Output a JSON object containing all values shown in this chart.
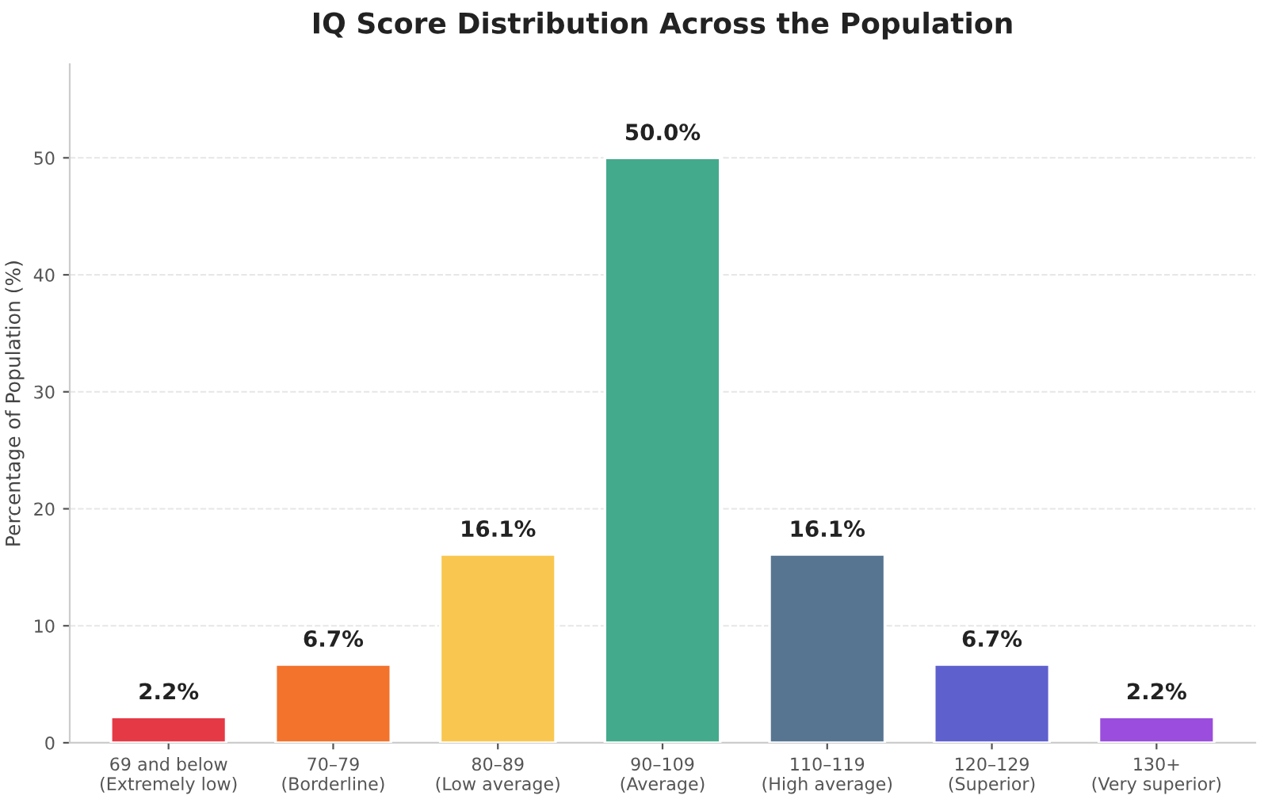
{
  "chart_data": {
    "type": "bar",
    "title": "IQ Score Distribution Across the Population",
    "ylabel": "Percentage of Population (%)",
    "categories": [
      "69 and below\n(Extremely low)",
      "70–79\n(Borderline)",
      "80–89\n(Low average)",
      "90–109\n(Average)",
      "110–119\n(High average)",
      "120–129\n(Superior)",
      "130+\n(Very superior)"
    ],
    "values": [
      2.2,
      6.7,
      16.1,
      50.0,
      16.1,
      6.7,
      2.2
    ],
    "colors": [
      "#e63946",
      "#f3722c",
      "#f9c74f",
      "#43aa8b",
      "#577590",
      "#5e60ce",
      "#9b4dde"
    ],
    "value_labels": [
      "2.2%",
      "6.7%",
      "16.1%",
      "50.0%",
      "16.1%",
      "6.7%",
      "2.2%"
    ],
    "ylim": [
      0,
      58
    ],
    "yticks": [
      0,
      10,
      20,
      30,
      40,
      50
    ],
    "grid": "y",
    "legend": false
  }
}
